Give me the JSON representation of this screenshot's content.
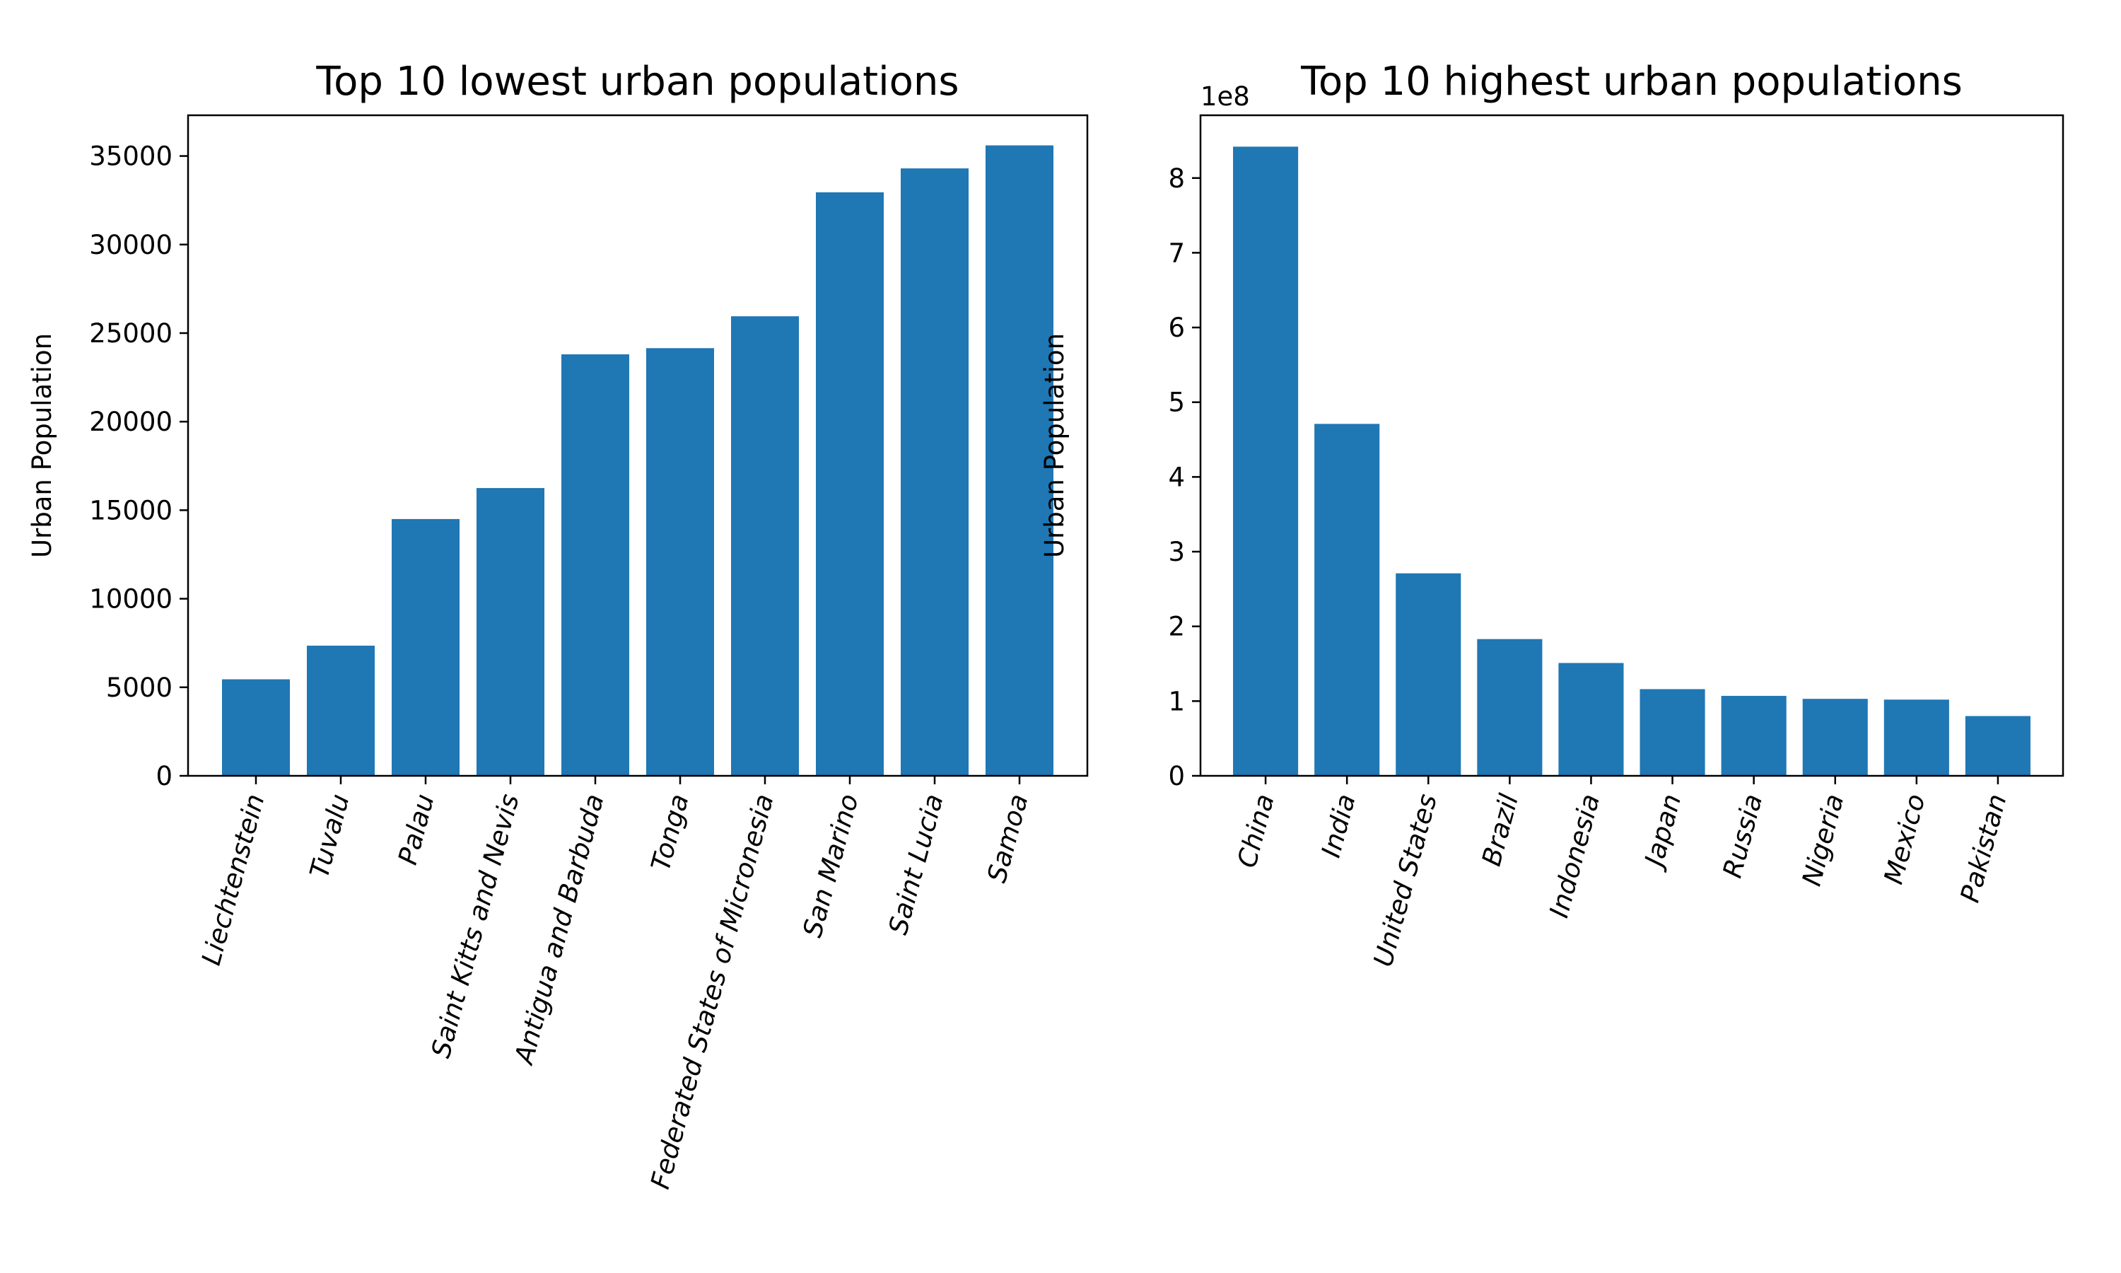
{
  "chart_data": [
    {
      "type": "bar",
      "title": "Top 10 lowest urban populations",
      "xlabel": "",
      "ylabel": "Urban Population",
      "categories": [
        "Liechtenstein",
        "Tuvalu",
        "Palau",
        "Saint Kitts and Nevis",
        "Antigua and Barbuda",
        "Tonga",
        "Federated States of Micronesia",
        "San Marino",
        "Saint Lucia",
        "Samoa"
      ],
      "values": [
        5450,
        7350,
        14500,
        16250,
        23800,
        24150,
        25950,
        32950,
        34300,
        35600
      ],
      "ylim": [
        0,
        37300
      ],
      "yticks": [
        0,
        5000,
        10000,
        15000,
        20000,
        25000,
        30000,
        35000
      ],
      "ytick_labels": [
        "0",
        "5000",
        "10000",
        "15000",
        "20000",
        "25000",
        "30000",
        "35000"
      ],
      "offset_text": "",
      "color": "#1f77b4",
      "grid": false,
      "legend": "none"
    },
    {
      "type": "bar",
      "title": "Top 10 highest urban populations",
      "xlabel": "",
      "ylabel": "Urban Population",
      "categories": [
        "China",
        "India",
        "United States",
        "Brazil",
        "Indonesia",
        "Japan",
        "Russia",
        "Nigeria",
        "Mexico",
        "Pakistan"
      ],
      "values": [
        842000000,
        471000000,
        271000000,
        183000000,
        151000000,
        116000000,
        107000000,
        103000000,
        102000000,
        80000000
      ],
      "ylim": [
        0,
        884000000
      ],
      "yticks": [
        0,
        100000000,
        200000000,
        300000000,
        400000000,
        500000000,
        600000000,
        700000000,
        800000000
      ],
      "ytick_labels": [
        "0",
        "1",
        "2",
        "3",
        "4",
        "5",
        "6",
        "7",
        "8"
      ],
      "offset_text": "1e8",
      "color": "#1f77b4",
      "grid": false,
      "legend": "none"
    }
  ]
}
